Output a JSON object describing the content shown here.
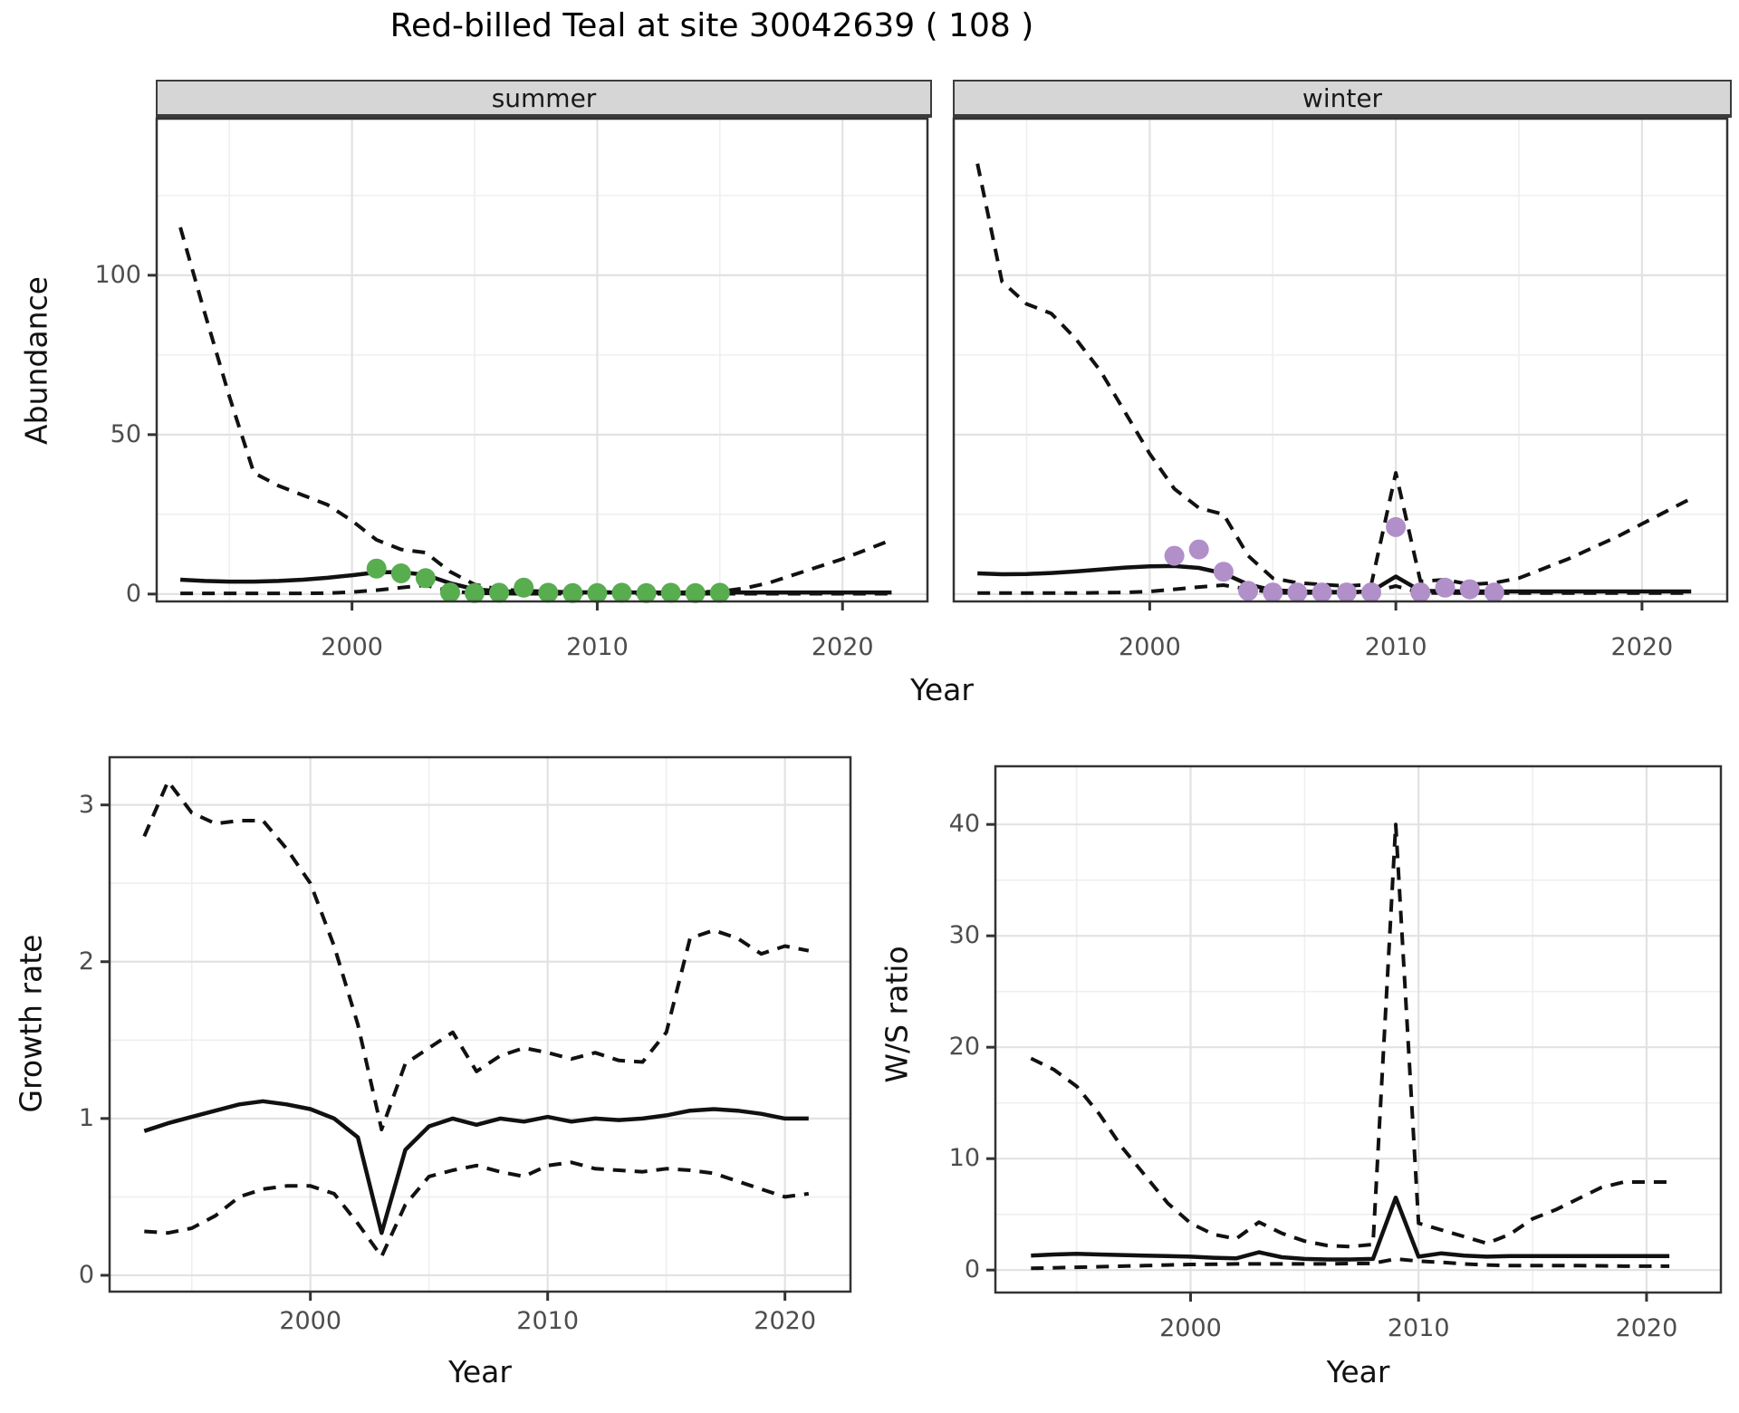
{
  "title": "Red-billed Teal at site 30042639 ( 108 )",
  "labels": {
    "facet_summer": "summer",
    "facet_winter": "winter",
    "abundance_axis": "Abundance",
    "growth_axis": "Growth rate",
    "ws_axis": "W/S ratio",
    "year_axis_top": "Year",
    "year_axis_growth": "Year",
    "year_axis_ws": "Year"
  },
  "style": {
    "summer_point_color": "#58ad4f",
    "winter_point_color": "#b18fc9",
    "line_color": "#111111",
    "strip_bg": "#d6d6d6",
    "grid_major": "#e2e2e2",
    "grid_minor": "#efefef",
    "panel_border": "#333333",
    "axis_text_color": "#4d4d4d"
  },
  "chart_data": [
    {
      "id": "abundance-summer",
      "type": "line",
      "title": "summer",
      "xlabel": "Year",
      "ylabel": "Abundance",
      "x_range": [
        1992,
        2023.5
      ],
      "y_range": [
        -2.6,
        149.4
      ],
      "x_ticks": [
        2000,
        2010,
        2020
      ],
      "x_minor": [
        1995,
        2005,
        2015
      ],
      "y_ticks": [
        0,
        50,
        100
      ],
      "y_minor": [
        25,
        75,
        125
      ],
      "series": [
        {
          "name": "upper_ci",
          "dash": true,
          "x0": 1993,
          "y": [
            115,
            88,
            62,
            38,
            34,
            31,
            28,
            23,
            17,
            14,
            13,
            7,
            3,
            1.5,
            1,
            0.8,
            0.6,
            0.6,
            0.6,
            0.6,
            0.6,
            0.6,
            0.8,
            1.8,
            3.5,
            6,
            8.5,
            11,
            14,
            17
          ]
        },
        {
          "name": "fit",
          "dash": false,
          "x0": 1993,
          "y": [
            4.5,
            4.1,
            3.9,
            3.9,
            4.1,
            4.5,
            5.1,
            5.9,
            6.8,
            6.9,
            6.0,
            3.4,
            1.5,
            0.9,
            0.7,
            0.6,
            0.5,
            0.5,
            0.5,
            0.5,
            0.5,
            0.5,
            0.5,
            0.5,
            0.5,
            0.5,
            0.5,
            0.5,
            0.5,
            0.5
          ]
        },
        {
          "name": "lower_ci",
          "dash": true,
          "x0": 1993,
          "y": [
            0.2,
            0.2,
            0.2,
            0.2,
            0.2,
            0.2,
            0.3,
            0.6,
            1.2,
            2.0,
            2.8,
            0.9,
            0.3,
            0.15,
            0.1,
            0.1,
            0.1,
            0.1,
            0.1,
            0.1,
            0.1,
            0.1,
            0.1,
            0.1,
            0.1,
            0.1,
            0.1,
            0.1,
            0.1,
            0.1
          ]
        }
      ],
      "points": {
        "name": "observed_counts_summer",
        "color_key": "summer_point_color",
        "data": [
          [
            2001,
            8
          ],
          [
            2002,
            6.5
          ],
          [
            2003,
            5
          ],
          [
            2004,
            0.5
          ],
          [
            2005,
            0.3
          ],
          [
            2006,
            0.4
          ],
          [
            2007,
            2
          ],
          [
            2008,
            0.4
          ],
          [
            2009,
            0.3
          ],
          [
            2010,
            0.3
          ],
          [
            2011,
            0.4
          ],
          [
            2012,
            0.3
          ],
          [
            2013,
            0.4
          ],
          [
            2014,
            0.3
          ],
          [
            2015,
            0.4
          ]
        ]
      }
    },
    {
      "id": "abundance-winter",
      "type": "line",
      "title": "winter",
      "xlabel": "Year",
      "ylabel": "Abundance",
      "x_range": [
        1992,
        2023.5
      ],
      "y_range": [
        -2.6,
        149.4
      ],
      "x_ticks": [
        2000,
        2010,
        2020
      ],
      "x_minor": [
        1995,
        2005,
        2015
      ],
      "y_ticks": [
        0,
        50,
        100
      ],
      "y_minor": [
        25,
        75,
        125
      ],
      "series": [
        {
          "name": "upper_ci",
          "dash": true,
          "x0": 1993,
          "y": [
            135,
            98,
            91,
            88,
            80,
            70,
            57,
            44,
            33,
            27,
            25,
            12,
            5,
            3.5,
            3,
            2.5,
            3,
            38,
            4,
            4.5,
            3,
            3.5,
            5,
            8,
            11,
            14.5,
            18,
            22,
            26,
            30
          ]
        },
        {
          "name": "fit",
          "dash": false,
          "x0": 1993,
          "y": [
            6.5,
            6.2,
            6.3,
            6.6,
            7.1,
            7.7,
            8.3,
            8.7,
            8.8,
            8.2,
            6.5,
            3.0,
            1.2,
            0.8,
            0.7,
            0.6,
            0.8,
            5.5,
            1.0,
            0.9,
            0.8,
            0.8,
            0.8,
            0.8,
            0.8,
            0.8,
            0.8,
            0.8,
            0.8,
            0.8
          ]
        },
        {
          "name": "lower_ci",
          "dash": true,
          "x0": 1993,
          "y": [
            0.3,
            0.3,
            0.3,
            0.3,
            0.3,
            0.4,
            0.5,
            0.8,
            1.5,
            2.2,
            2.8,
            1.5,
            0.5,
            0.3,
            0.4,
            0.5,
            0.6,
            2.5,
            0.4,
            0.3,
            0.3,
            0.3,
            0.3,
            0.3,
            0.3,
            0.3,
            0.3,
            0.3,
            0.3,
            0.3
          ]
        }
      ],
      "points": {
        "name": "observed_counts_winter",
        "color_key": "winter_point_color",
        "data": [
          [
            2001,
            12
          ],
          [
            2002,
            14
          ],
          [
            2003,
            7
          ],
          [
            2004,
            1
          ],
          [
            2005,
            0.5
          ],
          [
            2006,
            0.5
          ],
          [
            2007,
            0.5
          ],
          [
            2008,
            0.5
          ],
          [
            2009,
            0.5
          ],
          [
            2010,
            21
          ],
          [
            2011,
            0.5
          ],
          [
            2012,
            2
          ],
          [
            2013,
            1.5
          ],
          [
            2014,
            0.5
          ]
        ]
      }
    },
    {
      "id": "growth",
      "type": "line",
      "title": "",
      "xlabel": "Year",
      "ylabel": "Growth rate",
      "x_range": [
        1991.5,
        2022.8
      ],
      "y_range": [
        -0.11,
        3.31
      ],
      "x_ticks": [
        2000,
        2010,
        2020
      ],
      "x_minor": [
        1995,
        2005,
        2015
      ],
      "y_ticks": [
        0,
        1,
        2,
        3
      ],
      "y_minor": [
        0.5,
        1.5,
        2.5
      ],
      "series": [
        {
          "name": "upper_ci",
          "dash": true,
          "x0": 1993,
          "y": [
            2.8,
            3.15,
            2.95,
            2.88,
            2.9,
            2.9,
            2.72,
            2.5,
            2.1,
            1.6,
            0.93,
            1.35,
            1.45,
            1.55,
            1.3,
            1.4,
            1.45,
            1.42,
            1.38,
            1.42,
            1.37,
            1.36,
            1.55,
            2.15,
            2.2,
            2.15,
            2.05,
            2.1,
            2.07
          ]
        },
        {
          "name": "fit",
          "dash": false,
          "x0": 1993,
          "y": [
            0.92,
            0.97,
            1.01,
            1.05,
            1.09,
            1.11,
            1.09,
            1.06,
            1.0,
            0.88,
            0.27,
            0.8,
            0.95,
            1.0,
            0.96,
            1.0,
            0.98,
            1.01,
            0.98,
            1.0,
            0.99,
            1.0,
            1.02,
            1.05,
            1.06,
            1.05,
            1.03,
            1.0,
            1.0
          ]
        },
        {
          "name": "lower_ci",
          "dash": true,
          "x0": 1993,
          "y": [
            0.28,
            0.27,
            0.3,
            0.38,
            0.5,
            0.55,
            0.57,
            0.57,
            0.52,
            0.33,
            0.12,
            0.45,
            0.63,
            0.67,
            0.7,
            0.66,
            0.63,
            0.7,
            0.72,
            0.68,
            0.67,
            0.66,
            0.68,
            0.67,
            0.65,
            0.6,
            0.55,
            0.5,
            0.52
          ]
        }
      ],
      "points": null
    },
    {
      "id": "ws",
      "type": "line",
      "title": "",
      "xlabel": "Year",
      "ylabel": "W/S ratio",
      "x_range": [
        1991.4,
        2023.3
      ],
      "y_range": [
        -2.1,
        45.3
      ],
      "x_ticks": [
        2000,
        2010,
        2020
      ],
      "x_minor": [
        1995,
        2005,
        2015
      ],
      "y_ticks": [
        0,
        10,
        20,
        30,
        40
      ],
      "y_minor": [
        5,
        15,
        25,
        35
      ],
      "series": [
        {
          "name": "upper_ci",
          "dash": true,
          "x0": 1993,
          "y": [
            19,
            18,
            16.5,
            14,
            11,
            8.5,
            6,
            4.2,
            3.2,
            2.8,
            4.3,
            3.3,
            2.6,
            2.2,
            2.1,
            2.3,
            40,
            4.2,
            3.6,
            3.0,
            2.4,
            3.2,
            4.6,
            5.4,
            6.4,
            7.4,
            7.9,
            7.9,
            7.9
          ]
        },
        {
          "name": "fit",
          "dash": false,
          "x0": 1993,
          "y": [
            1.3,
            1.4,
            1.45,
            1.4,
            1.35,
            1.3,
            1.25,
            1.2,
            1.1,
            1.05,
            1.6,
            1.15,
            1.0,
            0.95,
            0.95,
            1.0,
            6.5,
            1.2,
            1.5,
            1.3,
            1.2,
            1.25,
            1.25,
            1.25,
            1.25,
            1.25,
            1.25,
            1.25,
            1.25
          ]
        },
        {
          "name": "lower_ci",
          "dash": true,
          "x0": 1993,
          "y": [
            0.15,
            0.2,
            0.25,
            0.3,
            0.35,
            0.4,
            0.45,
            0.5,
            0.52,
            0.55,
            0.55,
            0.55,
            0.55,
            0.55,
            0.58,
            0.6,
            1.0,
            0.8,
            0.7,
            0.55,
            0.45,
            0.4,
            0.4,
            0.4,
            0.4,
            0.38,
            0.35,
            0.35,
            0.35
          ]
        }
      ],
      "points": null
    }
  ]
}
